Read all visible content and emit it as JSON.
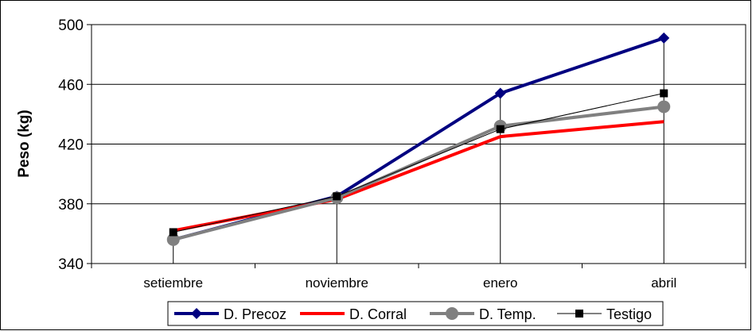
{
  "chart_data": {
    "type": "line",
    "title": "",
    "xlabel": "",
    "ylabel": "Peso (kg)",
    "categories": [
      "setiembre",
      "noviembre",
      "enero",
      "abril"
    ],
    "ylim": [
      340,
      500
    ],
    "yticks": [
      340,
      380,
      420,
      460,
      500
    ],
    "grid": "horizontal",
    "legend_position": "bottom",
    "series": [
      {
        "name": "D. Precoz",
        "values": [
          356,
          385,
          454,
          491
        ],
        "color": "#000080",
        "marker": "diamond",
        "stroke": 4
      },
      {
        "name": "D. Corral",
        "values": [
          362,
          383,
          425,
          435
        ],
        "color": "#ff0000",
        "marker": "none",
        "stroke": 4
      },
      {
        "name": "D. Temp.",
        "values": [
          356,
          384,
          432,
          445
        ],
        "color": "#808080",
        "marker": "circle",
        "stroke": 4
      },
      {
        "name": "Testigo",
        "values": [
          361,
          385,
          430,
          454
        ],
        "color": "#000000",
        "marker": "square",
        "stroke": 1
      }
    ]
  }
}
